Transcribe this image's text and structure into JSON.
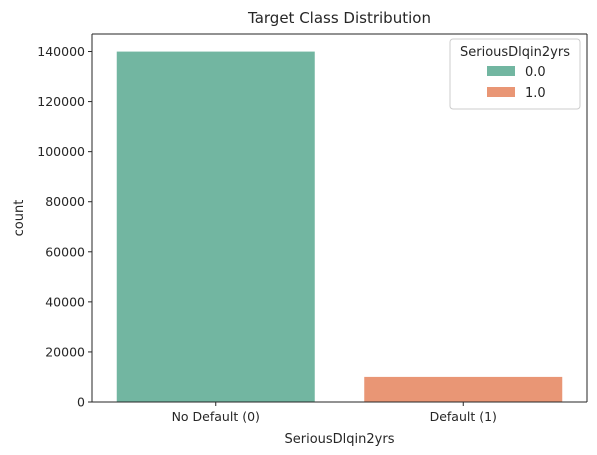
{
  "chart_data": {
    "type": "bar",
    "title": "Target Class Distribution",
    "xlabel": "SeriousDlqin2yrs",
    "ylabel": "count",
    "categories": [
      "No Default (0)",
      "Default (1)"
    ],
    "values": [
      139974,
      10026
    ],
    "colors": [
      "#72b6a1",
      "#e99675"
    ],
    "ylim": [
      0,
      147000
    ],
    "yticks": [
      0,
      20000,
      40000,
      60000,
      80000,
      100000,
      120000,
      140000
    ],
    "ytick_labels": [
      "0",
      "20000",
      "40000",
      "60000",
      "80000",
      "100000",
      "120000",
      "140000"
    ],
    "grid": false,
    "legend": {
      "title": "SeriousDlqin2yrs",
      "placement": "top-right",
      "entries": [
        {
          "label": "0.0",
          "color": "#72b6a1"
        },
        {
          "label": "1.0",
          "color": "#e99675"
        }
      ]
    }
  }
}
